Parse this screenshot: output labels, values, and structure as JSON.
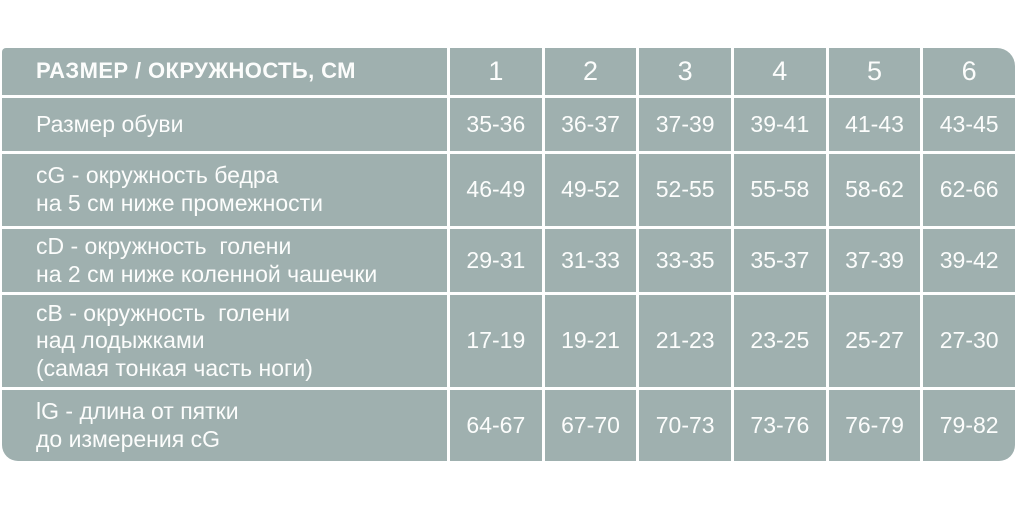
{
  "colors": {
    "cell_bg": "#9fb0af",
    "grid_lines": "#ffffff",
    "text": "#fcfdfc",
    "page_bg": "#ffffff"
  },
  "chart_data": {
    "type": "table",
    "title": "РАЗМЕР / ОКРУЖНОСТЬ, СМ",
    "columns": [
      "1",
      "2",
      "3",
      "4",
      "5",
      "6"
    ],
    "rows": [
      {
        "label": "Размер обуви",
        "values": [
          "35-36",
          "36-37",
          "37-39",
          "39-41",
          "41-43",
          "43-45"
        ]
      },
      {
        "label": "cG - окружность бедра\nна 5 см ниже промежности",
        "values": [
          "46-49",
          "49-52",
          "52-55",
          "55-58",
          "58-62",
          "62-66"
        ]
      },
      {
        "label": "cD - окружность  голени\nна 2 см ниже коленной чашечки",
        "values": [
          "29-31",
          "31-33",
          "33-35",
          "35-37",
          "37-39",
          "39-42"
        ]
      },
      {
        "label": "cB - окружность  голени\nнад лодыжками\n(самая тонкая часть ноги)",
        "values": [
          "17-19",
          "19-21",
          "21-23",
          "23-25",
          "25-27",
          "27-30"
        ]
      },
      {
        "label": "lG - длина от пятки\nдо измерения cG",
        "values": [
          "64-67",
          "67-70",
          "70-73",
          "73-76",
          "76-79",
          "79-82"
        ]
      }
    ]
  }
}
